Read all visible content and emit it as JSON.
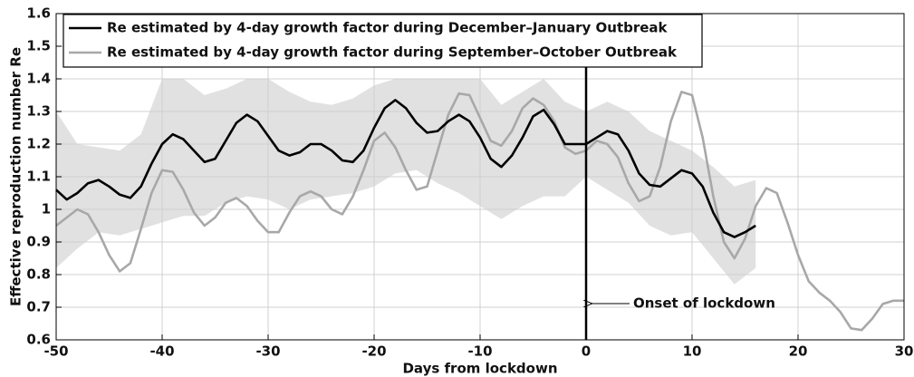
{
  "chart_data": {
    "type": "line",
    "xlabel": "Days from lockdown",
    "ylabel": "Effective reproduction number Re",
    "xlim": [
      -50,
      30
    ],
    "xticks": [
      -50,
      -40,
      -30,
      -20,
      -10,
      0,
      10,
      20,
      30
    ],
    "ylim": [
      0.6,
      1.6
    ],
    "yticks": [
      0.6,
      0.7,
      0.8,
      0.9,
      1,
      1.1,
      1.2,
      1.3,
      1.4,
      1.5,
      1.6
    ],
    "grid": true,
    "legend": "upper left",
    "vline_x": 0,
    "annotation": "Onset of lockdown",
    "band": {
      "color": "#e1e1e1",
      "x": [
        -50,
        -48,
        -46,
        -44,
        -42,
        -40,
        -38,
        -36,
        -34,
        -32,
        -30,
        -28,
        -26,
        -24,
        -22,
        -20,
        -18,
        -16,
        -14,
        -12,
        -10,
        -8,
        -6,
        -4,
        -2,
        0,
        2,
        4,
        6,
        8,
        10,
        12,
        14,
        16
      ],
      "upper": [
        1.3,
        1.2,
        1.19,
        1.18,
        1.23,
        1.4,
        1.4,
        1.35,
        1.37,
        1.4,
        1.4,
        1.36,
        1.33,
        1.32,
        1.34,
        1.38,
        1.4,
        1.4,
        1.4,
        1.4,
        1.4,
        1.32,
        1.36,
        1.4,
        1.33,
        1.3,
        1.33,
        1.3,
        1.24,
        1.21,
        1.18,
        1.13,
        1.07,
        1.09
      ],
      "lower": [
        0.82,
        0.88,
        0.93,
        0.92,
        0.94,
        0.96,
        0.98,
        0.98,
        1.02,
        1.04,
        1.03,
        1.0,
        1.03,
        1.04,
        1.05,
        1.07,
        1.11,
        1.12,
        1.08,
        1.05,
        1.01,
        0.97,
        1.01,
        1.04,
        1.04,
        1.1,
        1.06,
        1.02,
        0.95,
        0.92,
        0.93,
        0.85,
        0.77,
        0.82
      ]
    },
    "series": [
      {
        "name": "Re estimated by 4-day growth factor during December–January Outbreak",
        "color": "#000000",
        "x": [
          -50,
          -49,
          -48,
          -47,
          -46,
          -45,
          -44,
          -43,
          -42,
          -41,
          -40,
          -39,
          -38,
          -37,
          -36,
          -35,
          -34,
          -33,
          -32,
          -31,
          -30,
          -29,
          -28,
          -27,
          -26,
          -25,
          -24,
          -23,
          -22,
          -21,
          -20,
          -19,
          -18,
          -17,
          -16,
          -15,
          -14,
          -13,
          -12,
          -11,
          -10,
          -9,
          -8,
          -7,
          -6,
          -5,
          -4,
          -3,
          -2,
          -1,
          0,
          1,
          2,
          3,
          4,
          5,
          6,
          7,
          8,
          9,
          10,
          11,
          12,
          13,
          14,
          15,
          16
        ],
        "values": [
          1.06,
          1.03,
          1.05,
          1.08,
          1.09,
          1.07,
          1.045,
          1.035,
          1.07,
          1.14,
          1.2,
          1.23,
          1.215,
          1.18,
          1.145,
          1.155,
          1.21,
          1.265,
          1.29,
          1.27,
          1.225,
          1.18,
          1.165,
          1.175,
          1.2,
          1.2,
          1.18,
          1.15,
          1.145,
          1.18,
          1.25,
          1.31,
          1.335,
          1.31,
          1.265,
          1.235,
          1.24,
          1.27,
          1.29,
          1.27,
          1.22,
          1.155,
          1.13,
          1.165,
          1.22,
          1.285,
          1.305,
          1.26,
          1.2,
          1.2,
          1.2,
          1.22,
          1.24,
          1.23,
          1.18,
          1.11,
          1.075,
          1.07,
          1.095,
          1.12,
          1.11,
          1.07,
          0.99,
          0.93,
          0.915,
          0.93,
          0.95
        ]
      },
      {
        "name": "Re estimated by 4-day growth factor during September–October Outbreak",
        "color": "#a8a8a8",
        "x": [
          -50,
          -49,
          -48,
          -47,
          -46,
          -45,
          -44,
          -43,
          -42,
          -41,
          -40,
          -39,
          -38,
          -37,
          -36,
          -35,
          -34,
          -33,
          -32,
          -31,
          -30,
          -29,
          -28,
          -27,
          -26,
          -25,
          -24,
          -23,
          -22,
          -21,
          -20,
          -19,
          -18,
          -17,
          -16,
          -15,
          -14,
          -13,
          -12,
          -11,
          -10,
          -9,
          -8,
          -7,
          -6,
          -5,
          -4,
          -3,
          -2,
          -1,
          0,
          1,
          2,
          3,
          4,
          5,
          6,
          7,
          8,
          9,
          10,
          11,
          12,
          13,
          14,
          15,
          16,
          17,
          18,
          19,
          20,
          21,
          22,
          23,
          24,
          25,
          26,
          27,
          28,
          29,
          30
        ],
        "values": [
          0.95,
          0.975,
          1.0,
          0.985,
          0.93,
          0.86,
          0.81,
          0.835,
          0.94,
          1.05,
          1.12,
          1.115,
          1.06,
          0.99,
          0.95,
          0.975,
          1.02,
          1.035,
          1.01,
          0.965,
          0.93,
          0.93,
          0.99,
          1.04,
          1.055,
          1.04,
          1.0,
          0.985,
          1.04,
          1.12,
          1.21,
          1.235,
          1.19,
          1.12,
          1.06,
          1.07,
          1.18,
          1.29,
          1.355,
          1.35,
          1.28,
          1.21,
          1.195,
          1.24,
          1.31,
          1.34,
          1.32,
          1.27,
          1.19,
          1.17,
          1.18,
          1.21,
          1.2,
          1.16,
          1.08,
          1.025,
          1.04,
          1.13,
          1.27,
          1.36,
          1.35,
          1.22,
          1.04,
          0.9,
          0.85,
          0.91,
          1.01,
          1.065,
          1.05,
          0.96,
          0.86,
          0.78,
          0.745,
          0.72,
          0.685,
          0.635,
          0.63,
          0.665,
          0.71,
          0.72,
          0.72
        ]
      }
    ]
  }
}
